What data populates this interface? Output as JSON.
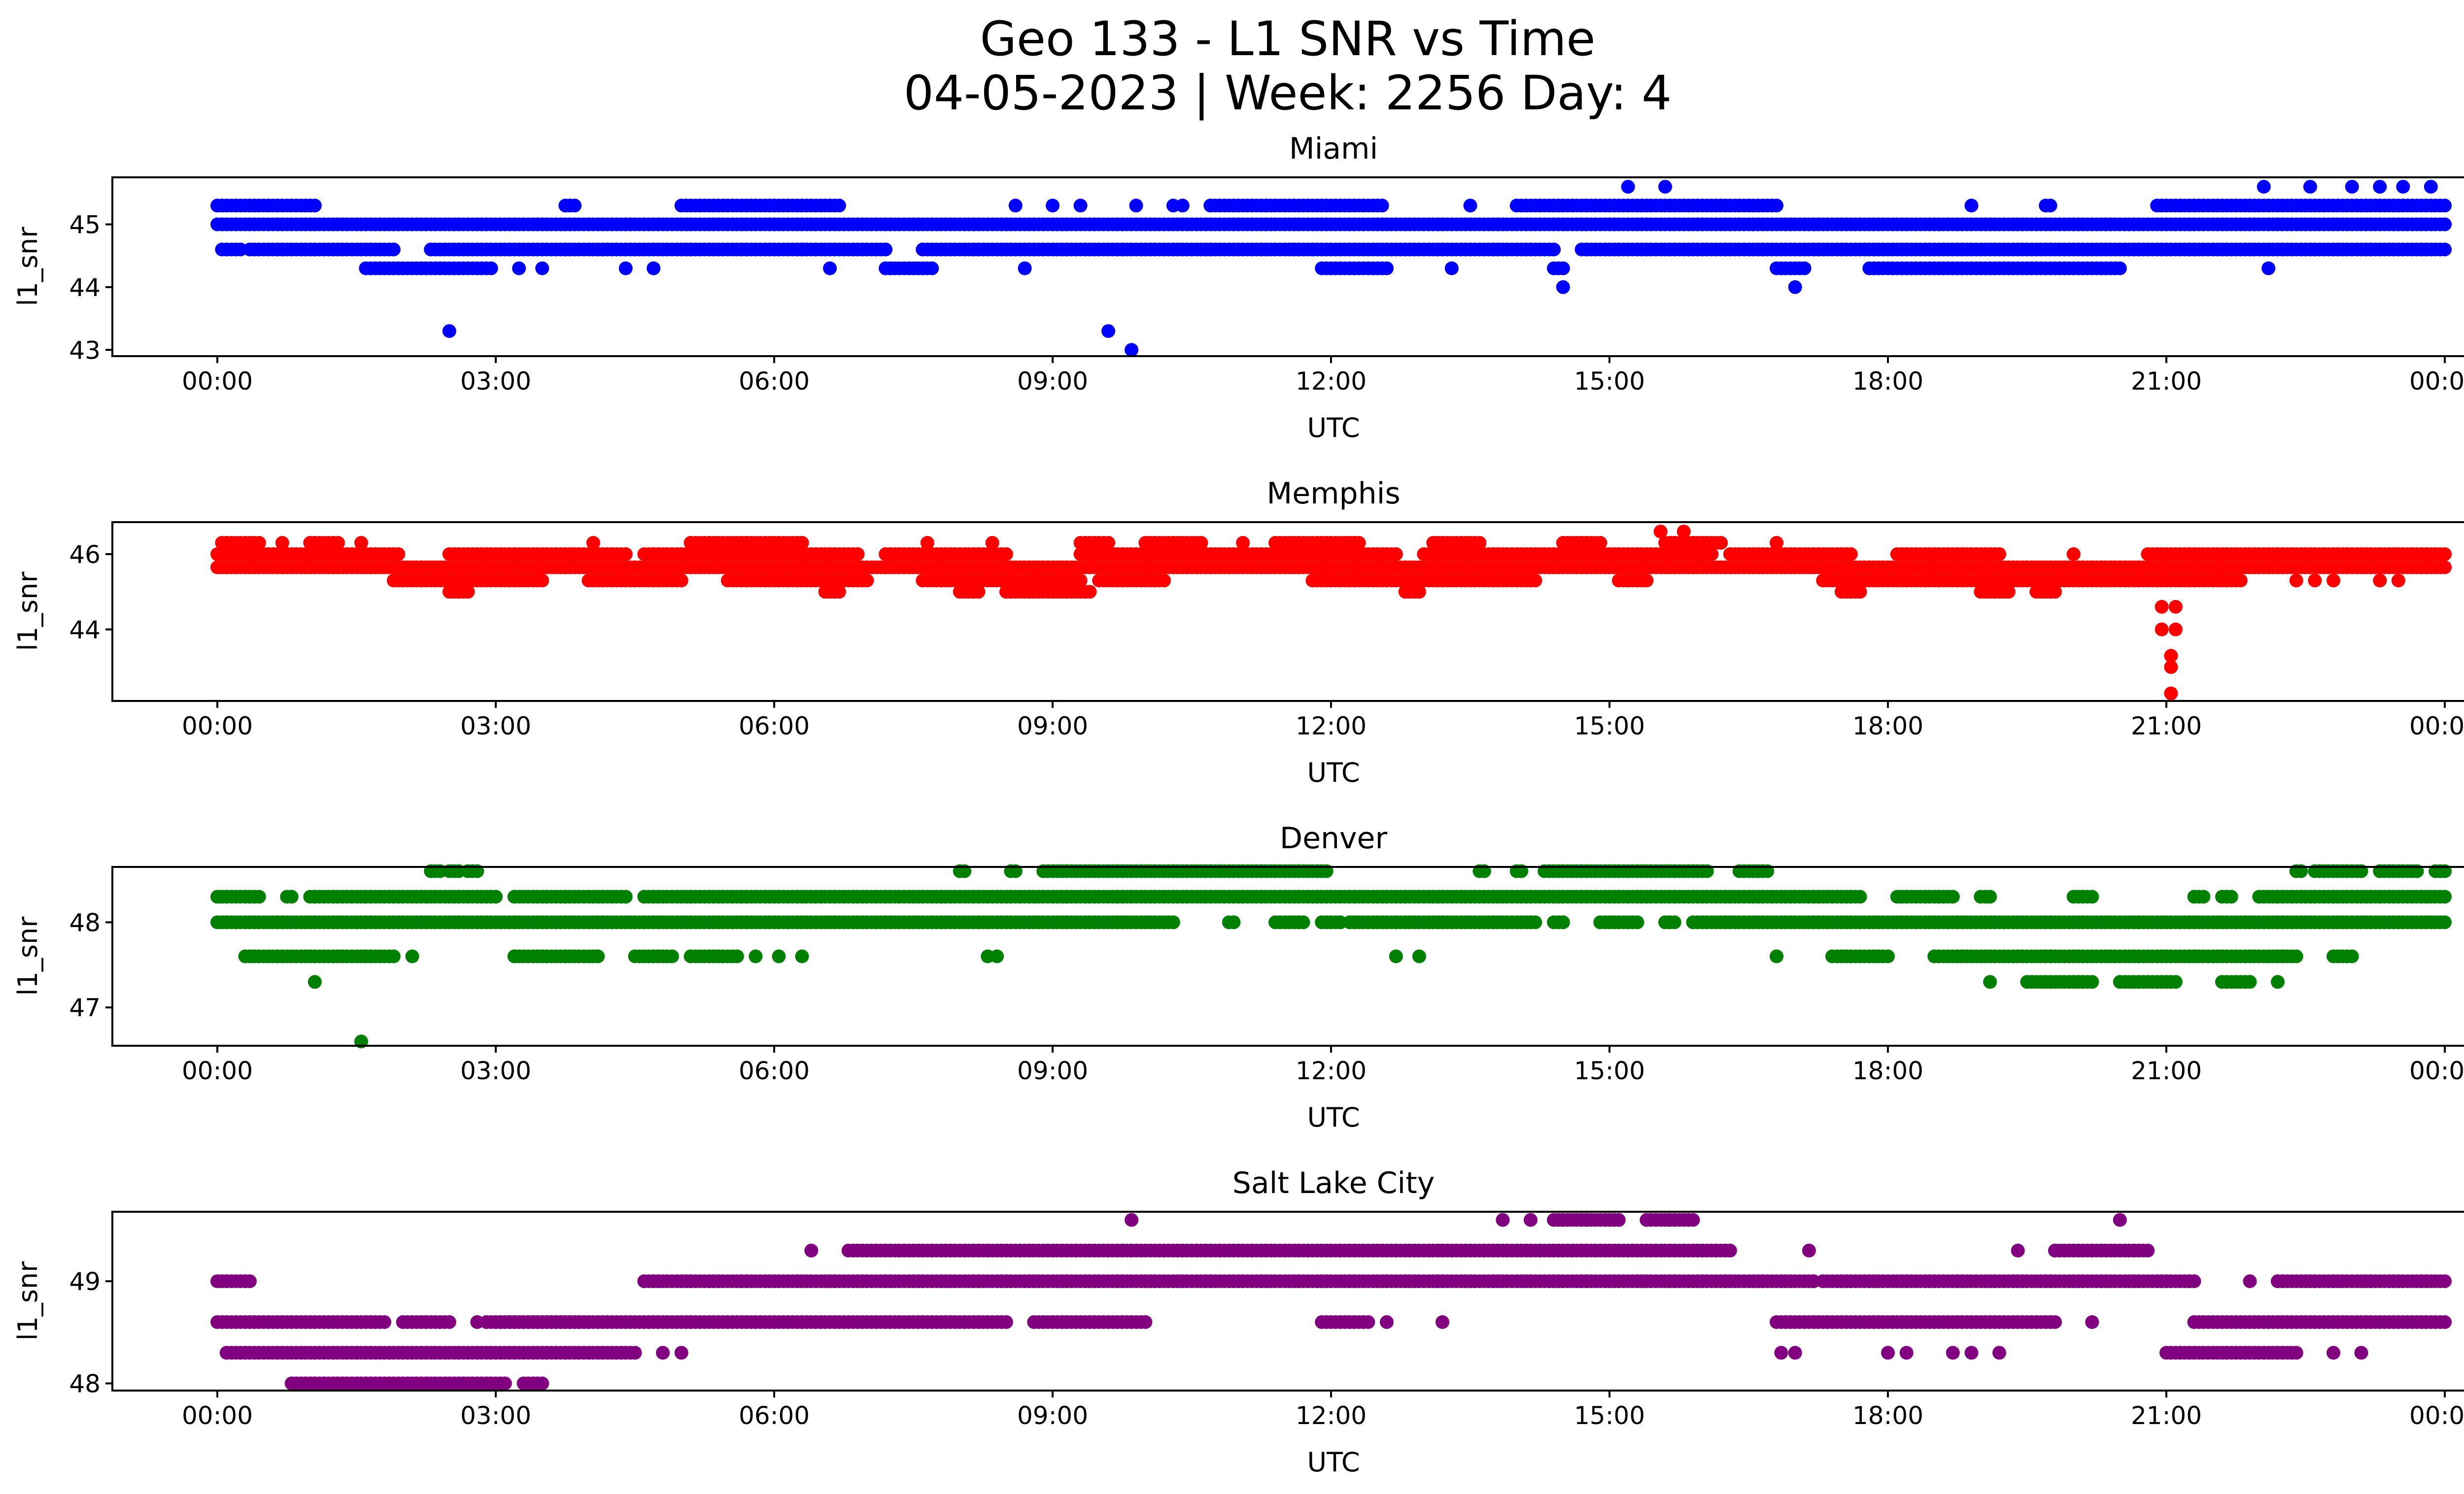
{
  "figure": {
    "title_line1": "Geo 133 - L1 SNR vs Time",
    "title_line2": "04-05-2023 | Week: 2256 Day: 4"
  },
  "chart_data": [
    {
      "type": "scatter",
      "title": "Miami",
      "xlabel": "UTC",
      "ylabel": "l1_snr",
      "color": "#0000ff",
      "x_ticks": [
        "00:00",
        "03:00",
        "06:00",
        "09:00",
        "12:00",
        "15:00",
        "18:00",
        "21:00",
        "00:00"
      ],
      "y_ticks": [
        43,
        44,
        45
      ],
      "ylim": [
        42.9,
        45.75
      ],
      "baseline_levels": [
        {
          "y": 45.0,
          "segments": [
            [
              0,
              24
            ]
          ]
        },
        {
          "y": 44.6,
          "segments": [
            [
              0.05,
              0.25
            ],
            [
              0.35,
              1.9
            ],
            [
              2.3,
              7.2
            ],
            [
              7.6,
              14.4
            ],
            [
              14.7,
              24
            ]
          ]
        },
        {
          "y": 45.3,
          "segments": [
            [
              0,
              1.05
            ],
            [
              3.75,
              3.85
            ],
            [
              5.0,
              6.7
            ],
            [
              10.7,
              12.55
            ],
            [
              14.0,
              16.8
            ],
            [
              20.9,
              24
            ]
          ]
        },
        {
          "y": 44.3,
          "segments": [
            [
              1.6,
              2.95
            ],
            [
              7.2,
              7.7
            ],
            [
              11.9,
              12.6
            ],
            [
              14.4,
              14.5
            ],
            [
              16.8,
              17.1
            ],
            [
              17.8,
              20.5
            ]
          ]
        }
      ],
      "outliers": [
        [
          2.5,
          43.3
        ],
        [
          9.6,
          43.3
        ],
        [
          9.85,
          43.0
        ],
        [
          14.5,
          44.0
        ],
        [
          17.0,
          44.0
        ],
        [
          15.2,
          45.6
        ],
        [
          15.6,
          45.6
        ],
        [
          22.05,
          45.6
        ],
        [
          22.55,
          45.6
        ],
        [
          23.0,
          45.6
        ],
        [
          23.3,
          45.6
        ],
        [
          23.55,
          45.6
        ],
        [
          23.85,
          45.6
        ],
        [
          3.25,
          44.3
        ],
        [
          3.5,
          44.3
        ],
        [
          4.4,
          44.3
        ],
        [
          4.7,
          44.3
        ],
        [
          8.7,
          44.3
        ],
        [
          13.3,
          44.3
        ],
        [
          22.1,
          44.3
        ],
        [
          8.6,
          45.3
        ],
        [
          9.0,
          45.3
        ],
        [
          9.3,
          45.3
        ],
        [
          9.9,
          45.3
        ],
        [
          10.3,
          45.3
        ],
        [
          10.4,
          45.3
        ],
        [
          13.5,
          45.3
        ],
        [
          18.9,
          45.3
        ],
        [
          19.7,
          45.3
        ],
        [
          19.75,
          45.3
        ],
        [
          6.3,
          44.6
        ],
        [
          6.6,
          44.3
        ],
        [
          11.6,
          44.6
        ],
        [
          11.8,
          44.6
        ]
      ]
    },
    {
      "type": "scatter",
      "title": "Memphis",
      "xlabel": "UTC",
      "ylabel": "l1_snr",
      "color": "#ff0000",
      "x_ticks": [
        "00:00",
        "03:00",
        "06:00",
        "09:00",
        "12:00",
        "15:00",
        "18:00",
        "21:00",
        "00:00"
      ],
      "y_ticks": [
        44,
        46
      ],
      "ylim": [
        42.1,
        46.85
      ],
      "baseline_levels": [
        {
          "y": 45.65,
          "segments": [
            [
              0,
              24
            ]
          ]
        },
        {
          "y": 46.0,
          "segments": [
            [
              0,
              1.95
            ],
            [
              2.5,
              4.4
            ],
            [
              4.6,
              6.9
            ],
            [
              7.2,
              8.5
            ],
            [
              9.3,
              12.7
            ],
            [
              13.0,
              16.1
            ],
            [
              16.3,
              17.6
            ],
            [
              18.1,
              19.2
            ],
            [
              20.8,
              24
            ]
          ]
        },
        {
          "y": 46.3,
          "segments": [
            [
              0.05,
              0.45
            ],
            [
              1.0,
              1.3
            ],
            [
              5.1,
              6.3
            ],
            [
              9.3,
              9.6
            ],
            [
              10.0,
              10.6
            ],
            [
              11.4,
              12.3
            ],
            [
              13.1,
              13.6
            ],
            [
              14.5,
              14.9
            ],
            [
              15.6,
              16.2
            ]
          ]
        },
        {
          "y": 45.3,
          "segments": [
            [
              1.9,
              3.5
            ],
            [
              4.0,
              5.0
            ],
            [
              5.5,
              7.0
            ],
            [
              7.6,
              9.3
            ],
            [
              9.5,
              10.2
            ],
            [
              11.8,
              14.2
            ],
            [
              15.1,
              15.4
            ],
            [
              17.3,
              21.8
            ]
          ]
        },
        {
          "y": 45.0,
          "segments": [
            [
              2.5,
              2.7
            ],
            [
              6.55,
              6.7
            ],
            [
              8.0,
              8.2
            ],
            [
              8.5,
              9.4
            ],
            [
              12.8,
              12.95
            ],
            [
              17.5,
              17.7
            ],
            [
              19.0,
              19.3
            ],
            [
              19.6,
              19.8
            ]
          ]
        }
      ],
      "outliers": [
        [
          15.55,
          46.6
        ],
        [
          15.8,
          46.6
        ],
        [
          20.95,
          44.6
        ],
        [
          21.1,
          44.6
        ],
        [
          20.95,
          44.0
        ],
        [
          21.1,
          44.0
        ],
        [
          21.05,
          43.3
        ],
        [
          21.05,
          43.0
        ],
        [
          21.05,
          42.3
        ],
        [
          0.7,
          46.3
        ],
        [
          1.55,
          46.3
        ],
        [
          4.05,
          46.3
        ],
        [
          7.65,
          46.3
        ],
        [
          8.35,
          46.3
        ],
        [
          11.05,
          46.3
        ],
        [
          16.8,
          46.3
        ],
        [
          20.0,
          46.0
        ],
        [
          22.4,
          45.3
        ],
        [
          22.6,
          45.3
        ],
        [
          22.8,
          45.3
        ],
        [
          23.3,
          45.3
        ],
        [
          23.5,
          45.3
        ]
      ]
    },
    {
      "type": "scatter",
      "title": "Denver",
      "xlabel": "UTC",
      "ylabel": "l1_snr",
      "color": "#008000",
      "x_ticks": [
        "00:00",
        "03:00",
        "06:00",
        "09:00",
        "12:00",
        "15:00",
        "18:00",
        "21:00",
        "00:00"
      ],
      "y_ticks": [
        47,
        48
      ],
      "ylim": [
        46.55,
        48.65
      ],
      "baseline_levels": [
        {
          "y": 48.3,
          "segments": [
            [
              0,
              0.45
            ],
            [
              0.75,
              0.8
            ],
            [
              1.0,
              3.0
            ],
            [
              3.2,
              4.4
            ],
            [
              4.6,
              17.7
            ],
            [
              18.1,
              18.7
            ],
            [
              19.0,
              19.1
            ],
            [
              20.0,
              20.2
            ],
            [
              21.3,
              21.4
            ],
            [
              21.6,
              21.7
            ],
            [
              22.0,
              24
            ]
          ]
        },
        {
          "y": 48.0,
          "segments": [
            [
              0,
              10.3
            ],
            [
              10.9,
              10.95
            ],
            [
              11.4,
              11.7
            ],
            [
              11.9,
              12.1
            ],
            [
              12.2,
              14.2
            ],
            [
              14.4,
              14.5
            ],
            [
              14.9,
              15.3
            ],
            [
              15.6,
              15.7
            ],
            [
              15.9,
              24
            ]
          ]
        },
        {
          "y": 48.6,
          "segments": [
            [
              2.3,
              2.4
            ],
            [
              2.5,
              2.6
            ],
            [
              2.7,
              2.8
            ],
            [
              8.0,
              8.05
            ],
            [
              8.55,
              8.6
            ],
            [
              8.9,
              11.95
            ],
            [
              13.6,
              13.65
            ],
            [
              14.0,
              14.05
            ],
            [
              14.3,
              16.05
            ],
            [
              16.4,
              16.7
            ],
            [
              22.4,
              22.45
            ],
            [
              22.6,
              23.1
            ],
            [
              23.3,
              23.7
            ],
            [
              23.9,
              24
            ]
          ]
        },
        {
          "y": 47.6,
          "segments": [
            [
              0.3,
              1.9
            ],
            [
              3.2,
              4.1
            ],
            [
              4.5,
              4.9
            ],
            [
              5.1,
              5.6
            ],
            [
              17.4,
              18.0
            ],
            [
              18.5,
              22.4
            ],
            [
              22.8,
              23.0
            ]
          ]
        },
        {
          "y": 47.3,
          "segments": [
            [
              19.5,
              20.2
            ],
            [
              20.5,
              21.1
            ],
            [
              21.6,
              21.9
            ]
          ]
        }
      ],
      "outliers": [
        [
          1.05,
          47.3
        ],
        [
          1.55,
          46.6
        ],
        [
          2.1,
          47.6
        ],
        [
          5.8,
          47.6
        ],
        [
          6.05,
          47.6
        ],
        [
          6.3,
          47.6
        ],
        [
          8.3,
          47.6
        ],
        [
          8.4,
          47.6
        ],
        [
          12.7,
          47.6
        ],
        [
          12.95,
          47.6
        ],
        [
          16.8,
          47.6
        ],
        [
          19.1,
          47.3
        ],
        [
          22.2,
          47.3
        ]
      ]
    },
    {
      "type": "scatter",
      "title": "Salt Lake City",
      "xlabel": "UTC",
      "ylabel": "l1_snr",
      "color": "#800080",
      "x_ticks": [
        "00:00",
        "03:00",
        "06:00",
        "09:00",
        "12:00",
        "15:00",
        "18:00",
        "21:00",
        "00:00"
      ],
      "y_ticks": [
        48,
        49
      ],
      "ylim": [
        47.93,
        49.68
      ],
      "baseline_levels": [
        {
          "y": 48.6,
          "segments": [
            [
              0,
              1.8
            ],
            [
              2.0,
              2.5
            ],
            [
              2.9,
              4.0
            ],
            [
              3.0,
              8.5
            ],
            [
              8.8,
              10.0
            ],
            [
              11.9,
              12.4
            ],
            [
              16.8,
              19.8
            ],
            [
              21.3,
              24
            ]
          ]
        },
        {
          "y": 49.0,
          "segments": [
            [
              0,
              0.35
            ],
            [
              4.6,
              17.2
            ],
            [
              17.3,
              21.3
            ],
            [
              22.2,
              24
            ]
          ]
        },
        {
          "y": 48.3,
          "segments": [
            [
              0.1,
              4.5
            ],
            [
              21.0,
              22.4
            ]
          ]
        },
        {
          "y": 49.3,
          "segments": [
            [
              6.8,
              16.3
            ],
            [
              19.8,
              20.8
            ]
          ]
        },
        {
          "y": 48.0,
          "segments": [
            [
              0.8,
              3.1
            ],
            [
              3.3,
              3.5
            ]
          ]
        },
        {
          "y": 49.6,
          "segments": [
            [
              14.4,
              15.1
            ],
            [
              15.4,
              15.9
            ]
          ]
        }
      ],
      "outliers": [
        [
          6.4,
          49.3
        ],
        [
          17.15,
          49.3
        ],
        [
          19.4,
          49.3
        ],
        [
          21.9,
          49.0
        ],
        [
          22.2,
          49.0
        ],
        [
          13.85,
          49.6
        ],
        [
          9.85,
          49.6
        ],
        [
          14.15,
          49.6
        ],
        [
          20.5,
          49.6
        ],
        [
          2.8,
          48.6
        ],
        [
          20.2,
          48.6
        ],
        [
          13.2,
          48.6
        ],
        [
          12.6,
          48.6
        ],
        [
          16.85,
          48.3
        ],
        [
          17.0,
          48.3
        ],
        [
          18.0,
          48.3
        ],
        [
          18.2,
          48.3
        ],
        [
          18.7,
          48.3
        ],
        [
          18.9,
          48.3
        ],
        [
          19.2,
          48.3
        ],
        [
          22.8,
          48.3
        ],
        [
          23.1,
          48.3
        ],
        [
          4.8,
          48.3
        ],
        [
          5.0,
          48.3
        ]
      ]
    }
  ]
}
